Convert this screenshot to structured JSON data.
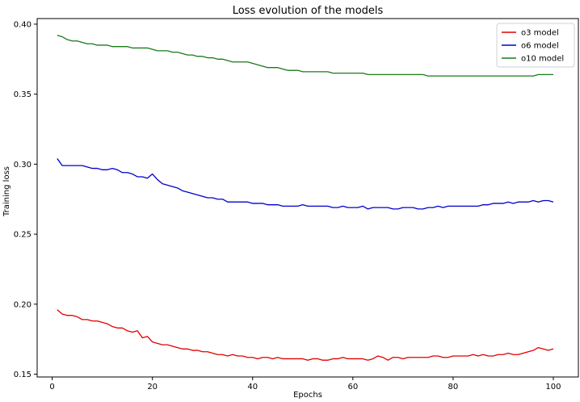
{
  "chart_data": {
    "type": "line",
    "title": "Loss evolution of the models",
    "xlabel": "Epochs",
    "ylabel": "Training loss",
    "xlim": [
      -3,
      105
    ],
    "ylim": [
      0.148,
      0.404
    ],
    "xticks": [
      0,
      20,
      40,
      60,
      80,
      100
    ],
    "yticks": [
      0.15,
      0.2,
      0.25,
      0.3,
      0.35,
      0.4
    ],
    "ytick_labels": [
      "0.15",
      "0.20",
      "0.25",
      "0.30",
      "0.35",
      "0.40"
    ],
    "grid": false,
    "legend_position": "top-right",
    "x": [
      1,
      2,
      3,
      4,
      5,
      6,
      7,
      8,
      9,
      10,
      11,
      12,
      13,
      14,
      15,
      16,
      17,
      18,
      19,
      20,
      21,
      22,
      23,
      24,
      25,
      26,
      27,
      28,
      29,
      30,
      31,
      32,
      33,
      34,
      35,
      36,
      37,
      38,
      39,
      40,
      41,
      42,
      43,
      44,
      45,
      46,
      47,
      48,
      49,
      50,
      51,
      52,
      53,
      54,
      55,
      56,
      57,
      58,
      59,
      60,
      61,
      62,
      63,
      64,
      65,
      66,
      67,
      68,
      69,
      70,
      71,
      72,
      73,
      74,
      75,
      76,
      77,
      78,
      79,
      80,
      81,
      82,
      83,
      84,
      85,
      86,
      87,
      88,
      89,
      90,
      91,
      92,
      93,
      94,
      95,
      96,
      97,
      98,
      99,
      100
    ],
    "series": [
      {
        "name": "o3 model",
        "color": "#e00000",
        "values": [
          0.196,
          0.193,
          0.192,
          0.192,
          0.191,
          0.189,
          0.189,
          0.188,
          0.188,
          0.187,
          0.186,
          0.184,
          0.183,
          0.183,
          0.181,
          0.18,
          0.181,
          0.176,
          0.177,
          0.173,
          0.172,
          0.171,
          0.171,
          0.17,
          0.169,
          0.168,
          0.168,
          0.167,
          0.167,
          0.166,
          0.166,
          0.165,
          0.164,
          0.164,
          0.163,
          0.164,
          0.163,
          0.163,
          0.162,
          0.162,
          0.161,
          0.162,
          0.162,
          0.161,
          0.162,
          0.161,
          0.161,
          0.161,
          0.161,
          0.161,
          0.16,
          0.161,
          0.161,
          0.16,
          0.16,
          0.161,
          0.161,
          0.162,
          0.161,
          0.161,
          0.161,
          0.161,
          0.16,
          0.161,
          0.163,
          0.162,
          0.16,
          0.162,
          0.162,
          0.161,
          0.162,
          0.162,
          0.162,
          0.162,
          0.162,
          0.163,
          0.163,
          0.162,
          0.162,
          0.163,
          0.163,
          0.163,
          0.163,
          0.164,
          0.163,
          0.164,
          0.163,
          0.163,
          0.164,
          0.164,
          0.165,
          0.164,
          0.164,
          0.165,
          0.166,
          0.167,
          0.169,
          0.168,
          0.167,
          0.168
        ]
      },
      {
        "name": "o6 model",
        "color": "#0000cc",
        "values": [
          0.304,
          0.299,
          0.299,
          0.299,
          0.299,
          0.299,
          0.298,
          0.297,
          0.297,
          0.296,
          0.296,
          0.297,
          0.296,
          0.294,
          0.294,
          0.293,
          0.291,
          0.291,
          0.29,
          0.293,
          0.289,
          0.286,
          0.285,
          0.284,
          0.283,
          0.281,
          0.28,
          0.279,
          0.278,
          0.277,
          0.276,
          0.276,
          0.275,
          0.275,
          0.273,
          0.273,
          0.273,
          0.273,
          0.273,
          0.272,
          0.272,
          0.272,
          0.271,
          0.271,
          0.271,
          0.27,
          0.27,
          0.27,
          0.27,
          0.271,
          0.27,
          0.27,
          0.27,
          0.27,
          0.27,
          0.269,
          0.269,
          0.27,
          0.269,
          0.269,
          0.269,
          0.27,
          0.268,
          0.269,
          0.269,
          0.269,
          0.269,
          0.268,
          0.268,
          0.269,
          0.269,
          0.269,
          0.268,
          0.268,
          0.269,
          0.269,
          0.27,
          0.269,
          0.27,
          0.27,
          0.27,
          0.27,
          0.27,
          0.27,
          0.27,
          0.271,
          0.271,
          0.272,
          0.272,
          0.272,
          0.273,
          0.272,
          0.273,
          0.273,
          0.273,
          0.274,
          0.273,
          0.274,
          0.274,
          0.273
        ]
      },
      {
        "name": "o10 model",
        "color": "#1a7a1a",
        "values": [
          0.392,
          0.391,
          0.389,
          0.388,
          0.388,
          0.387,
          0.386,
          0.386,
          0.385,
          0.385,
          0.385,
          0.384,
          0.384,
          0.384,
          0.384,
          0.383,
          0.383,
          0.383,
          0.383,
          0.382,
          0.381,
          0.381,
          0.381,
          0.38,
          0.38,
          0.379,
          0.378,
          0.378,
          0.377,
          0.377,
          0.376,
          0.376,
          0.375,
          0.375,
          0.374,
          0.373,
          0.373,
          0.373,
          0.373,
          0.372,
          0.371,
          0.37,
          0.369,
          0.369,
          0.369,
          0.368,
          0.367,
          0.367,
          0.367,
          0.366,
          0.366,
          0.366,
          0.366,
          0.366,
          0.366,
          0.365,
          0.365,
          0.365,
          0.365,
          0.365,
          0.365,
          0.365,
          0.364,
          0.364,
          0.364,
          0.364,
          0.364,
          0.364,
          0.364,
          0.364,
          0.364,
          0.364,
          0.364,
          0.364,
          0.363,
          0.363,
          0.363,
          0.363,
          0.363,
          0.363,
          0.363,
          0.363,
          0.363,
          0.363,
          0.363,
          0.363,
          0.363,
          0.363,
          0.363,
          0.363,
          0.363,
          0.363,
          0.363,
          0.363,
          0.363,
          0.363,
          0.364,
          0.364,
          0.364,
          0.364
        ]
      }
    ]
  }
}
